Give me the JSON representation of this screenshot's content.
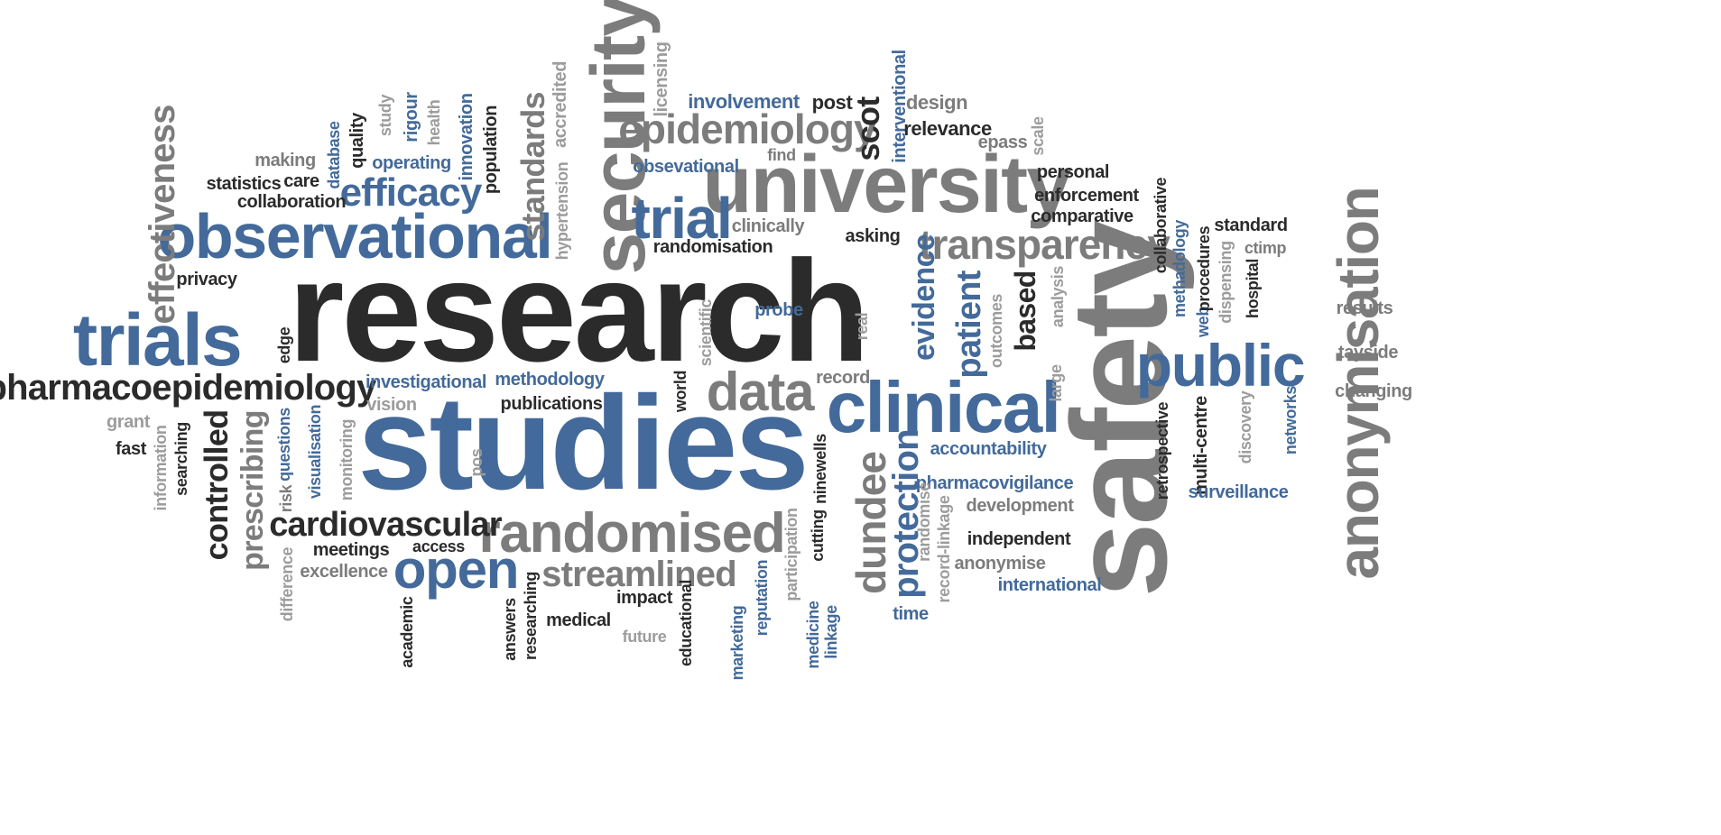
{
  "colors": {
    "dark": "#2b2b2b",
    "blue": "#436a9a",
    "grey": "#7c7c7c",
    "lgrey": "#9c9c9c"
  },
  "words": [
    {
      "text": "research",
      "c": "dark"
    },
    {
      "text": "studies",
      "c": "blue"
    },
    {
      "text": "safety",
      "c": "grey"
    },
    {
      "text": "university",
      "c": "grey"
    },
    {
      "text": "security",
      "c": "grey"
    },
    {
      "text": "observational",
      "c": "blue"
    },
    {
      "text": "trials",
      "c": "blue"
    },
    {
      "text": "clinical",
      "c": "blue"
    },
    {
      "text": "anonymisation",
      "c": "grey"
    },
    {
      "text": "randomised",
      "c": "grey"
    },
    {
      "text": "public",
      "c": "blue"
    },
    {
      "text": "open",
      "c": "blue"
    },
    {
      "text": "data",
      "c": "grey"
    },
    {
      "text": "pharmacoepidemiology",
      "c": "dark"
    },
    {
      "text": "transparency",
      "c": "grey"
    },
    {
      "text": "trial",
      "c": "blue"
    },
    {
      "text": "epidemiology",
      "c": "grey"
    },
    {
      "text": "efficacy",
      "c": "blue"
    },
    {
      "text": "effectiveness",
      "c": "grey"
    },
    {
      "text": "cardiovascular",
      "c": "dark"
    },
    {
      "text": "streamlined",
      "c": "grey"
    },
    {
      "text": "dundee",
      "c": "grey"
    },
    {
      "text": "protection",
      "c": "blue"
    },
    {
      "text": "evidence",
      "c": "blue"
    },
    {
      "text": "patient",
      "c": "blue"
    },
    {
      "text": "based",
      "c": "dark"
    },
    {
      "text": "scot",
      "c": "dark"
    },
    {
      "text": "controlled",
      "c": "dark"
    },
    {
      "text": "prescribing",
      "c": "grey"
    },
    {
      "text": "standards",
      "c": "grey"
    },
    {
      "text": "involvement",
      "c": "blue"
    },
    {
      "text": "post",
      "c": "dark"
    },
    {
      "text": "design",
      "c": "grey"
    },
    {
      "text": "interventional",
      "c": "blue"
    },
    {
      "text": "relevance",
      "c": "dark"
    },
    {
      "text": "epass",
      "c": "grey"
    },
    {
      "text": "scale",
      "c": "lgrey"
    },
    {
      "text": "licensing",
      "c": "lgrey"
    },
    {
      "text": "accredited",
      "c": "lgrey"
    },
    {
      "text": "hypertension",
      "c": "lgrey"
    },
    {
      "text": "population",
      "c": "dark"
    },
    {
      "text": "innovation",
      "c": "blue"
    },
    {
      "text": "health",
      "c": "lgrey"
    },
    {
      "text": "rigour",
      "c": "blue"
    },
    {
      "text": "study",
      "c": "lgrey"
    },
    {
      "text": "operating",
      "c": "blue"
    },
    {
      "text": "quality",
      "c": "dark"
    },
    {
      "text": "database",
      "c": "blue"
    },
    {
      "text": "making",
      "c": "grey"
    },
    {
      "text": "statistics",
      "c": "dark"
    },
    {
      "text": "care",
      "c": "dark"
    },
    {
      "text": "collaboration",
      "c": "dark"
    },
    {
      "text": "obsevational",
      "c": "blue"
    },
    {
      "text": "find",
      "c": "grey"
    },
    {
      "text": "clinically",
      "c": "grey"
    },
    {
      "text": "randomisation",
      "c": "dark"
    },
    {
      "text": "asking",
      "c": "dark"
    },
    {
      "text": "personal",
      "c": "dark"
    },
    {
      "text": "enforcement",
      "c": "dark"
    },
    {
      "text": "comparative",
      "c": "dark"
    },
    {
      "text": "collaborative",
      "c": "dark"
    },
    {
      "text": "standard",
      "c": "dark"
    },
    {
      "text": "ctimp",
      "c": "grey"
    },
    {
      "text": "methadology",
      "c": "blue"
    },
    {
      "text": "web",
      "c": "blue"
    },
    {
      "text": "procedures",
      "c": "dark"
    },
    {
      "text": "dispensing",
      "c": "lgrey"
    },
    {
      "text": "hospital",
      "c": "dark"
    },
    {
      "text": "results",
      "c": "grey"
    },
    {
      "text": "tayside",
      "c": "grey"
    },
    {
      "text": "changing",
      "c": "grey"
    },
    {
      "text": "privacy",
      "c": "dark"
    },
    {
      "text": "edge",
      "c": "dark"
    },
    {
      "text": "probe",
      "c": "blue"
    },
    {
      "text": "scientific",
      "c": "lgrey"
    },
    {
      "text": "real",
      "c": "lgrey"
    },
    {
      "text": "outcomes",
      "c": "lgrey"
    },
    {
      "text": "analysis",
      "c": "lgrey"
    },
    {
      "text": "large",
      "c": "lgrey"
    },
    {
      "text": "retrospective",
      "c": "dark"
    },
    {
      "text": "multi-centre",
      "c": "dark"
    },
    {
      "text": "discovery",
      "c": "lgrey"
    },
    {
      "text": "networks",
      "c": "blue"
    },
    {
      "text": "surveillance",
      "c": "blue"
    },
    {
      "text": "investigational",
      "c": "blue"
    },
    {
      "text": "methodology",
      "c": "blue"
    },
    {
      "text": "record",
      "c": "grey"
    },
    {
      "text": "vision",
      "c": "lgrey"
    },
    {
      "text": "publications",
      "c": "dark"
    },
    {
      "text": "world",
      "c": "dark"
    },
    {
      "text": "grant",
      "c": "lgrey"
    },
    {
      "text": "fast",
      "c": "dark"
    },
    {
      "text": "information",
      "c": "lgrey"
    },
    {
      "text": "searching",
      "c": "dark"
    },
    {
      "text": "questions",
      "c": "blue"
    },
    {
      "text": "risk",
      "c": "grey"
    },
    {
      "text": "visualisation",
      "c": "blue"
    },
    {
      "text": "monitoring",
      "c": "lgrey"
    },
    {
      "text": "pos",
      "c": "lgrey"
    },
    {
      "text": "accountability",
      "c": "blue"
    },
    {
      "text": "pharmacovigilance",
      "c": "blue"
    },
    {
      "text": "development",
      "c": "grey"
    },
    {
      "text": "independent",
      "c": "dark"
    },
    {
      "text": "anonymise",
      "c": "grey"
    },
    {
      "text": "international",
      "c": "blue"
    },
    {
      "text": "randomise",
      "c": "lgrey"
    },
    {
      "text": "record-linkage",
      "c": "lgrey"
    },
    {
      "text": "ninewells",
      "c": "dark"
    },
    {
      "text": "cutting",
      "c": "dark"
    },
    {
      "text": "participation",
      "c": "lgrey"
    },
    {
      "text": "time",
      "c": "blue"
    },
    {
      "text": "meetings",
      "c": "dark"
    },
    {
      "text": "access",
      "c": "dark"
    },
    {
      "text": "difference",
      "c": "lgrey"
    },
    {
      "text": "excellence",
      "c": "grey"
    },
    {
      "text": "academic",
      "c": "dark"
    },
    {
      "text": "answers",
      "c": "dark"
    },
    {
      "text": "researching",
      "c": "dark"
    },
    {
      "text": "medical",
      "c": "dark"
    },
    {
      "text": "impact",
      "c": "dark"
    },
    {
      "text": "future",
      "c": "lgrey"
    },
    {
      "text": "educational",
      "c": "dark"
    },
    {
      "text": "marketing",
      "c": "blue"
    },
    {
      "text": "reputation",
      "c": "blue"
    },
    {
      "text": "medicine",
      "c": "blue"
    },
    {
      "text": "linkage",
      "c": "blue"
    }
  ]
}
